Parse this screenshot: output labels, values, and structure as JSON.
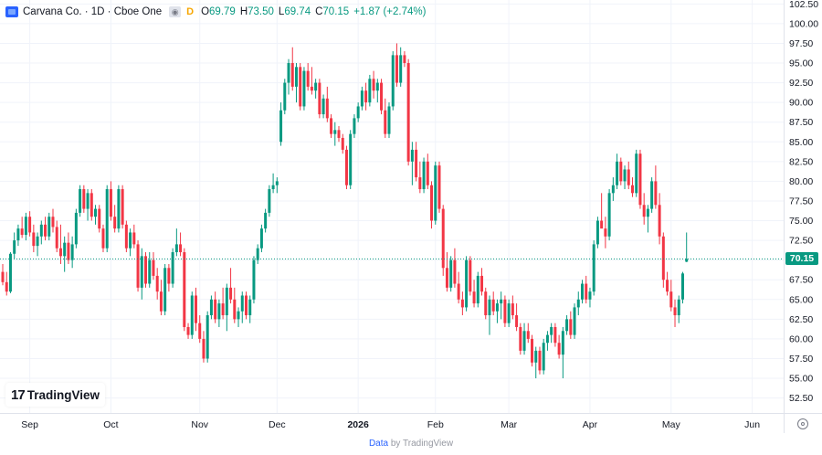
{
  "legend": {
    "title": "Carvana Co. · 1D · Cboe One",
    "eye_icon": "eye-icon",
    "flag": "D",
    "open_label": "O",
    "open": "69.79",
    "high_label": "H",
    "high": "73.50",
    "low_label": "L",
    "low": "69.74",
    "close_label": "C",
    "close": "70.15",
    "change": "+1.87 (+2.74%)"
  },
  "colors": {
    "up": "#089981",
    "down": "#f23645",
    "grid": "#f0f3fa",
    "axis_text": "#131722"
  },
  "branding": {
    "mark": "17",
    "text": "TradingView"
  },
  "footer": {
    "link": "Data",
    "rest": " by TradingView"
  },
  "settings_icon": "gear-icon",
  "chart_data": {
    "type": "candlestick",
    "symbol": "Carvana Co.",
    "interval": "1D",
    "exchange": "Cboe One",
    "last_price": 70.15,
    "last_price_label": "70.15",
    "ylim": [
      50.6,
      103.0
    ],
    "y_ticks": [
      52.5,
      55,
      57.5,
      60,
      62.5,
      65,
      67.5,
      70,
      72.5,
      75,
      77.5,
      80,
      82.5,
      85,
      87.5,
      90,
      92.5,
      95,
      97.5,
      100,
      102.5
    ],
    "y_tick_labels": [
      "52.50",
      "55.00",
      "57.50",
      "60.00",
      "62.50",
      "65.00",
      "67.50",
      "70.00",
      "72.50",
      "75.00",
      "77.50",
      "80.00",
      "82.50",
      "85.00",
      "87.50",
      "90.00",
      "92.50",
      "95.00",
      "97.50",
      "100.00",
      "102.50"
    ],
    "x_ticks": [
      {
        "label": "Sep",
        "index": 7
      },
      {
        "label": "Oct",
        "index": 28
      },
      {
        "label": "Nov",
        "index": 51
      },
      {
        "label": "Dec",
        "index": 71
      },
      {
        "label": "2026",
        "index": 92
      },
      {
        "label": "Feb",
        "index": 112
      },
      {
        "label": "Mar",
        "index": 131
      },
      {
        "label": "Apr",
        "index": 152
      },
      {
        "label": "May",
        "index": 173
      },
      {
        "label": "Jun",
        "index": 194
      }
    ],
    "grid": true,
    "candles": [
      [
        68.5,
        69.5,
        66.8,
        67.2
      ],
      [
        67.2,
        68.5,
        65.5,
        66.0
      ],
      [
        66.0,
        71.0,
        65.8,
        70.8
      ],
      [
        70.8,
        73.5,
        70.2,
        72.5
      ],
      [
        72.5,
        74.5,
        71.8,
        74.0
      ],
      [
        74.0,
        75.5,
        72.8,
        73.2
      ],
      [
        73.2,
        76.0,
        72.5,
        75.5
      ],
      [
        75.5,
        76.2,
        73.0,
        73.5
      ],
      [
        73.5,
        74.5,
        71.0,
        71.8
      ],
      [
        71.8,
        73.5,
        70.5,
        73.0
      ],
      [
        73.0,
        75.0,
        72.0,
        74.5
      ],
      [
        74.5,
        75.5,
        72.5,
        73.0
      ],
      [
        73.0,
        76.0,
        72.5,
        75.5
      ],
      [
        75.5,
        76.5,
        73.5,
        74.2
      ],
      [
        74.2,
        75.0,
        71.0,
        71.5
      ],
      [
        71.5,
        74.5,
        69.5,
        70.5
      ],
      [
        70.5,
        73.0,
        68.5,
        72.2
      ],
      [
        72.2,
        73.5,
        69.5,
        70.0
      ],
      [
        70.0,
        73.0,
        69.0,
        72.0
      ],
      [
        72.0,
        76.5,
        71.5,
        76.0
      ],
      [
        76.0,
        79.5,
        75.5,
        79.0
      ],
      [
        79.0,
        79.5,
        76.0,
        76.5
      ],
      [
        76.5,
        79.0,
        75.0,
        78.5
      ],
      [
        78.5,
        79.0,
        75.0,
        75.5
      ],
      [
        75.5,
        77.0,
        74.5,
        76.5
      ],
      [
        76.5,
        77.0,
        73.5,
        74.0
      ],
      [
        74.0,
        74.5,
        71.0,
        71.5
      ],
      [
        71.5,
        79.5,
        71.0,
        79.0
      ],
      [
        79.0,
        80.0,
        75.0,
        75.5
      ],
      [
        75.5,
        77.0,
        73.5,
        74.0
      ],
      [
        74.0,
        79.5,
        73.5,
        79.0
      ],
      [
        79.0,
        79.5,
        74.0,
        74.5
      ],
      [
        74.5,
        75.0,
        71.0,
        71.5
      ],
      [
        71.5,
        74.0,
        70.5,
        73.5
      ],
      [
        73.5,
        74.5,
        71.5,
        72.0
      ],
      [
        72.0,
        72.5,
        66.0,
        66.5
      ],
      [
        66.5,
        71.5,
        65.0,
        70.5
      ],
      [
        70.5,
        71.0,
        66.5,
        67.0
      ],
      [
        67.0,
        71.0,
        66.5,
        70.0
      ],
      [
        70.0,
        71.0,
        67.5,
        68.0
      ],
      [
        68.0,
        69.0,
        65.0,
        66.0
      ],
      [
        66.0,
        67.5,
        63.0,
        63.5
      ],
      [
        63.5,
        69.5,
        63.0,
        69.0
      ],
      [
        69.0,
        69.5,
        66.0,
        67.0
      ],
      [
        67.0,
        71.5,
        66.5,
        71.0
      ],
      [
        71.0,
        74.0,
        70.5,
        72.0
      ],
      [
        72.0,
        73.5,
        70.5,
        71.0
      ],
      [
        71.0,
        71.5,
        61.0,
        61.5
      ],
      [
        61.5,
        62.0,
        60.0,
        60.5
      ],
      [
        60.5,
        66.0,
        60.0,
        65.5
      ],
      [
        65.5,
        66.5,
        61.0,
        62.0
      ],
      [
        62.0,
        63.0,
        59.5,
        60.0
      ],
      [
        60.0,
        61.0,
        57.0,
        57.5
      ],
      [
        57.5,
        63.5,
        57.0,
        63.0
      ],
      [
        63.0,
        65.5,
        62.5,
        65.0
      ],
      [
        65.0,
        66.0,
        62.0,
        62.5
      ],
      [
        62.5,
        65.0,
        61.5,
        64.5
      ],
      [
        64.5,
        66.5,
        62.5,
        63.0
      ],
      [
        63.0,
        67.0,
        61.0,
        66.5
      ],
      [
        66.5,
        69.0,
        64.5,
        65.0
      ],
      [
        65.0,
        66.5,
        62.0,
        62.5
      ],
      [
        62.5,
        64.0,
        61.5,
        63.5
      ],
      [
        63.5,
        66.0,
        62.0,
        65.5
      ],
      [
        65.5,
        66.0,
        62.5,
        63.0
      ],
      [
        63.0,
        65.5,
        62.0,
        65.0
      ],
      [
        65.0,
        70.5,
        64.5,
        70.0
      ],
      [
        70.0,
        72.0,
        69.5,
        71.5
      ],
      [
        71.5,
        74.5,
        71.0,
        74.0
      ],
      [
        74.0,
        76.5,
        73.5,
        76.0
      ],
      [
        76.0,
        79.5,
        75.5,
        79.0
      ],
      [
        79.0,
        81.0,
        78.5,
        79.5
      ],
      [
        79.5,
        80.5,
        78.5,
        80.0
      ],
      [
        85.0,
        90.0,
        84.5,
        89.0
      ],
      [
        89.0,
        93.0,
        88.5,
        92.5
      ],
      [
        92.5,
        95.5,
        91.0,
        95.0
      ],
      [
        95.0,
        97.0,
        91.5,
        92.0
      ],
      [
        92.0,
        95.0,
        90.0,
        94.5
      ],
      [
        94.5,
        95.0,
        89.0,
        89.5
      ],
      [
        89.5,
        94.5,
        89.0,
        94.0
      ],
      [
        94.0,
        95.0,
        91.5,
        92.0
      ],
      [
        92.0,
        94.5,
        91.0,
        91.5
      ],
      [
        91.5,
        93.0,
        90.5,
        92.5
      ],
      [
        92.5,
        93.0,
        88.0,
        88.5
      ],
      [
        88.5,
        91.0,
        88.0,
        90.5
      ],
      [
        90.5,
        92.0,
        87.5,
        88.0
      ],
      [
        88.0,
        88.5,
        85.5,
        86.0
      ],
      [
        86.0,
        87.5,
        84.5,
        86.5
      ],
      [
        86.5,
        87.0,
        85.0,
        85.5
      ],
      [
        85.5,
        86.0,
        83.5,
        84.0
      ],
      [
        84.0,
        84.5,
        79.0,
        79.5
      ],
      [
        79.5,
        86.5,
        79.0,
        86.0
      ],
      [
        86.0,
        88.5,
        85.5,
        88.0
      ],
      [
        88.0,
        90.0,
        87.5,
        89.5
      ],
      [
        89.5,
        92.0,
        89.0,
        91.5
      ],
      [
        91.5,
        92.5,
        89.0,
        90.0
      ],
      [
        90.0,
        93.5,
        89.5,
        93.0
      ],
      [
        93.0,
        94.0,
        90.5,
        91.5
      ],
      [
        91.5,
        93.0,
        90.0,
        92.5
      ],
      [
        92.5,
        93.0,
        88.5,
        89.0
      ],
      [
        89.0,
        90.5,
        85.5,
        86.0
      ],
      [
        86.0,
        90.0,
        85.5,
        89.5
      ],
      [
        89.5,
        96.5,
        89.0,
        96.0
      ],
      [
        96.0,
        97.5,
        92.0,
        92.5
      ],
      [
        92.5,
        97.0,
        92.0,
        96.0
      ],
      [
        96.0,
        96.5,
        94.5,
        95.0
      ],
      [
        95.0,
        95.5,
        82.0,
        82.5
      ],
      [
        82.5,
        85.0,
        79.5,
        84.0
      ],
      [
        84.0,
        85.0,
        80.0,
        80.5
      ],
      [
        80.5,
        82.5,
        78.5,
        79.0
      ],
      [
        79.0,
        83.0,
        78.5,
        82.5
      ],
      [
        82.5,
        83.5,
        79.0,
        79.5
      ],
      [
        79.5,
        80.0,
        74.0,
        75.0
      ],
      [
        75.0,
        82.5,
        74.5,
        82.0
      ],
      [
        82.0,
        82.5,
        76.0,
        76.5
      ],
      [
        76.5,
        77.0,
        68.0,
        69.0
      ],
      [
        69.0,
        71.0,
        66.0,
        66.5
      ],
      [
        66.5,
        70.5,
        66.0,
        70.0
      ],
      [
        70.0,
        71.5,
        66.5,
        67.0
      ],
      [
        67.0,
        68.5,
        64.5,
        65.0
      ],
      [
        65.0,
        66.0,
        63.0,
        64.0
      ],
      [
        64.0,
        70.5,
        63.5,
        70.0
      ],
      [
        70.0,
        70.5,
        65.5,
        66.0
      ],
      [
        66.0,
        67.5,
        64.0,
        64.5
      ],
      [
        64.5,
        68.5,
        64.0,
        68.0
      ],
      [
        68.0,
        69.0,
        65.5,
        66.0
      ],
      [
        66.0,
        66.5,
        62.5,
        63.0
      ],
      [
        63.0,
        65.5,
        60.5,
        65.0
      ],
      [
        65.0,
        66.0,
        63.0,
        63.5
      ],
      [
        63.5,
        65.0,
        62.0,
        64.5
      ],
      [
        64.5,
        66.0,
        62.5,
        65.0
      ],
      [
        65.0,
        65.5,
        61.5,
        62.0
      ],
      [
        62.0,
        65.0,
        61.5,
        64.5
      ],
      [
        64.5,
        65.5,
        62.5,
        63.0
      ],
      [
        63.0,
        64.5,
        61.0,
        61.5
      ],
      [
        61.5,
        62.0,
        58.0,
        58.5
      ],
      [
        58.5,
        62.0,
        58.0,
        61.0
      ],
      [
        61.0,
        62.0,
        59.5,
        60.0
      ],
      [
        60.0,
        60.5,
        56.5,
        57.0
      ],
      [
        57.0,
        59.0,
        55.0,
        58.5
      ],
      [
        58.5,
        59.0,
        55.5,
        56.0
      ],
      [
        56.0,
        60.0,
        55.5,
        59.5
      ],
      [
        59.5,
        61.0,
        58.5,
        60.5
      ],
      [
        60.5,
        62.0,
        59.5,
        61.5
      ],
      [
        61.5,
        62.0,
        59.0,
        59.5
      ],
      [
        59.5,
        60.5,
        57.5,
        58.0
      ],
      [
        58.0,
        61.5,
        55.0,
        61.0
      ],
      [
        61.0,
        63.0,
        60.5,
        62.5
      ],
      [
        62.5,
        63.5,
        60.0,
        60.5
      ],
      [
        60.5,
        64.5,
        60.0,
        64.0
      ],
      [
        64.0,
        66.0,
        63.0,
        65.0
      ],
      [
        65.0,
        67.5,
        64.5,
        67.0
      ],
      [
        67.0,
        68.0,
        64.5,
        65.0
      ],
      [
        65.0,
        66.5,
        64.0,
        66.0
      ],
      [
        66.0,
        72.5,
        65.5,
        72.0
      ],
      [
        72.0,
        75.5,
        71.5,
        75.0
      ],
      [
        75.0,
        78.5,
        74.5,
        74.0
      ],
      [
        74.0,
        75.5,
        71.5,
        73.0
      ],
      [
        73.0,
        79.0,
        72.5,
        78.5
      ],
      [
        78.5,
        80.5,
        77.5,
        79.5
      ],
      [
        79.5,
        83.5,
        79.0,
        82.5
      ],
      [
        82.5,
        83.0,
        79.5,
        80.0
      ],
      [
        80.0,
        82.0,
        79.0,
        81.5
      ],
      [
        81.5,
        82.5,
        79.0,
        79.5
      ],
      [
        79.5,
        80.5,
        78.0,
        78.5
      ],
      [
        78.5,
        84.0,
        78.0,
        83.5
      ],
      [
        83.5,
        84.0,
        76.5,
        77.0
      ],
      [
        77.0,
        78.5,
        74.5,
        75.5
      ],
      [
        75.5,
        77.0,
        73.5,
        76.5
      ],
      [
        76.5,
        80.5,
        76.0,
        80.0
      ],
      [
        80.0,
        82.0,
        76.5,
        77.0
      ],
      [
        77.0,
        78.5,
        72.0,
        73.0
      ],
      [
        73.0,
        73.5,
        66.5,
        67.5
      ],
      [
        67.5,
        68.5,
        65.5,
        66.0
      ],
      [
        66.0,
        67.5,
        63.5,
        64.0
      ],
      [
        64.0,
        65.0,
        61.5,
        63.0
      ],
      [
        63.0,
        65.5,
        62.0,
        65.0
      ],
      [
        65.0,
        68.5,
        64.5,
        68.3
      ],
      [
        69.79,
        73.5,
        69.74,
        70.15
      ]
    ]
  }
}
